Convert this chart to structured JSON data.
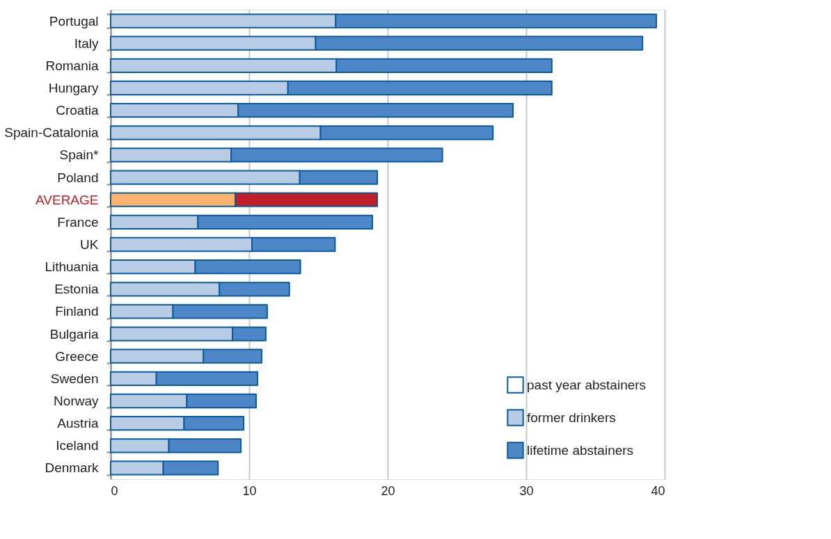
{
  "chart_data": {
    "type": "bar",
    "orientation": "horizontal",
    "stacked": true,
    "categories": [
      "Portugal",
      "Italy",
      "Romania",
      "Hungary",
      "Croatia",
      "Spain-Catalonia",
      "Spain*",
      "Poland",
      "AVERAGE",
      "France",
      "UK",
      "Lithuania",
      "Estonia",
      "Finland",
      "Bulgaria",
      "Greece",
      "Sweden",
      "Norway",
      "Austria",
      "Iceland",
      "Denmark"
    ],
    "series": [
      {
        "name": "former drinkers",
        "color": "#b8cde5",
        "colors": [
          "#b8cde5",
          "#b8cde5",
          "#b8cde5",
          "#b8cde5",
          "#b8cde5",
          "#b8cde5",
          "#b8cde5",
          "#b8cde5",
          "#f9b36f",
          "#b8cde5",
          "#b8cde5",
          "#b8cde5",
          "#b8cde5",
          "#b8cde5",
          "#b8cde5",
          "#b8cde5",
          "#b8cde5",
          "#b8cde5",
          "#b8cde5",
          "#b8cde5",
          "#b8cde5"
        ],
        "values": [
          16.25,
          14.8,
          16.3,
          12.8,
          9.2,
          15.15,
          8.7,
          13.65,
          9.0,
          6.3,
          10.2,
          6.1,
          7.85,
          4.5,
          8.8,
          6.7,
          3.3,
          5.5,
          5.3,
          4.2,
          3.8
        ]
      },
      {
        "name": "lifetime abstainers",
        "color": "#4d87c7",
        "colors": [
          "#4d87c7",
          "#4d87c7",
          "#4d87c7",
          "#4d87c7",
          "#4d87c7",
          "#4d87c7",
          "#4d87c7",
          "#4d87c7",
          "#c1202a",
          "#4d87c7",
          "#4d87c7",
          "#4d87c7",
          "#4d87c7",
          "#4d87c7",
          "#4d87c7",
          "#4d87c7",
          "#4d87c7",
          "#4d87c7",
          "#4d87c7",
          "#4d87c7",
          "#4d87c7"
        ],
        "values": [
          23.15,
          23.6,
          15.55,
          19.05,
          19.85,
          12.45,
          15.25,
          5.6,
          10.25,
          12.6,
          6.0,
          7.6,
          5.05,
          6.8,
          2.4,
          4.2,
          7.3,
          5.0,
          4.3,
          5.2,
          3.95
        ]
      }
    ],
    "legend_title": "past year abstainers",
    "xlim": [
      0,
      40
    ],
    "xticks": [
      0,
      10,
      20,
      30,
      40
    ],
    "grid": "x",
    "legend": "bottom right"
  }
}
